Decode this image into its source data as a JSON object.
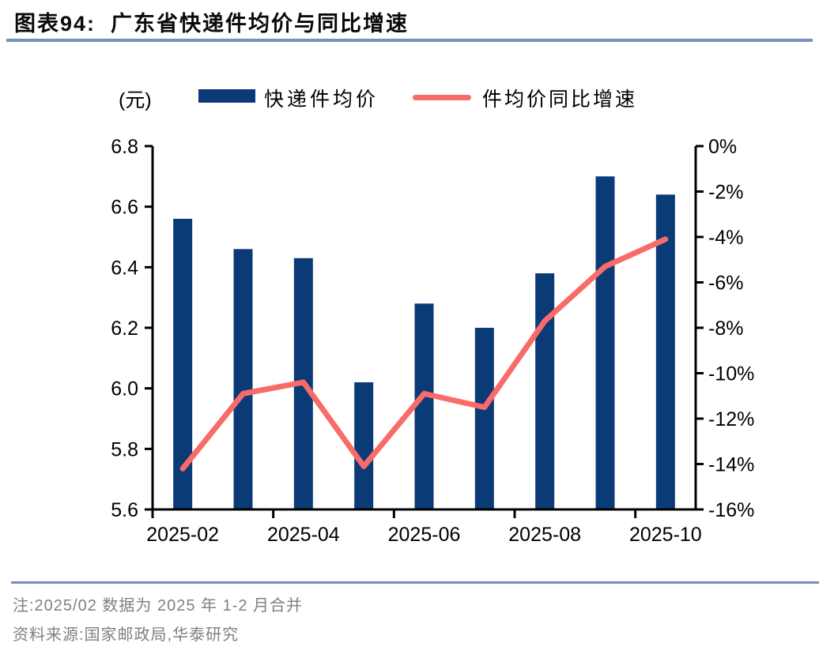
{
  "header": {
    "title": "图表94:  广东省快递件均价与同比增速"
  },
  "legend": {
    "unit_label": "(元)"
  },
  "chart_data": {
    "type": "combo",
    "title": "广东省快递件均价与同比增速",
    "categories": [
      "2025-02",
      "2025-03",
      "2025-04",
      "2025-05",
      "2025-06",
      "2025-07",
      "2025-08",
      "2025-09",
      "2025-10"
    ],
    "series": [
      {
        "name": "快递件均价",
        "type": "bar",
        "axis": "left",
        "unit": "元",
        "values": [
          6.56,
          6.46,
          6.43,
          6.02,
          6.28,
          6.2,
          6.38,
          6.7,
          6.64
        ]
      },
      {
        "name": "件均价同比增速",
        "type": "line",
        "axis": "right",
        "unit": "%",
        "values": [
          -14.2,
          -10.9,
          -10.4,
          -14.1,
          -10.9,
          -11.5,
          -7.7,
          -5.3,
          -4.1
        ]
      }
    ],
    "left_axis": {
      "min": 5.6,
      "max": 6.8,
      "tick_values": [
        6.8,
        6.6,
        6.4,
        6.2,
        6.0,
        5.8,
        5.6
      ],
      "tick_labels": [
        "6.8",
        "6.6",
        "6.4",
        "6.2",
        "6.0",
        "5.8",
        "5.6"
      ]
    },
    "right_axis": {
      "min": -16,
      "max": 0,
      "tick_values": [
        0,
        -2,
        -4,
        -6,
        -8,
        -10,
        -12,
        -14,
        -16
      ],
      "tick_labels": [
        "0%",
        "-2%",
        "-4%",
        "-6%",
        "-8%",
        "-10%",
        "-12%",
        "-14%",
        "-16%"
      ]
    },
    "x_axis": {
      "labels": [
        "2025-02",
        "2025-04",
        "2025-06",
        "2025-08",
        "2025-10"
      ],
      "label_category_indexes": [
        0,
        2,
        4,
        6,
        8
      ]
    },
    "grid": "off",
    "legend_position": "top",
    "colors": {
      "bar": "#0b3b76",
      "line": "#f96b68",
      "axis": "#000000"
    }
  },
  "footer": {
    "note": "注:2025/02 数据为 2025 年 1-2 月合并",
    "source": "资料来源:国家邮政局,华泰研究"
  }
}
